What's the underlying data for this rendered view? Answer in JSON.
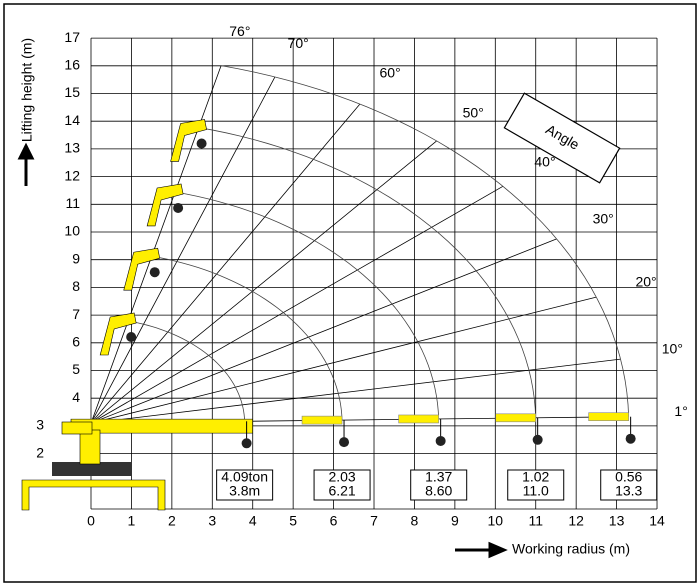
{
  "y_axis": {
    "label": "Lifting height (m)",
    "ticks": [
      2,
      3,
      4,
      5,
      6,
      7,
      8,
      9,
      10,
      11,
      12,
      13,
      14,
      15,
      16,
      17
    ]
  },
  "x_axis": {
    "label": "Working radius (m)",
    "ticks": [
      0,
      1,
      2,
      3,
      4,
      5,
      6,
      7,
      8,
      9,
      10,
      11,
      12,
      13,
      14
    ]
  },
  "angle_title": "Angle",
  "angles": [
    "76°",
    "70°",
    "60°",
    "50°",
    "40°",
    "30°",
    "20°",
    "10°",
    "1°"
  ],
  "loads": [
    {
      "load": "4.09ton",
      "radius": "3.8m"
    },
    {
      "load": "2.03",
      "radius": "6.21"
    },
    {
      "load": "1.37",
      "radius": "8.60"
    },
    {
      "load": "1.02",
      "radius": "11.0"
    },
    {
      "load": "0.56",
      "radius": "13.3"
    }
  ]
}
